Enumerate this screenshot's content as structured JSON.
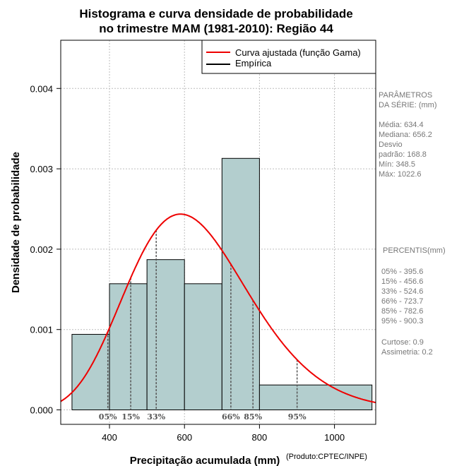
{
  "chart_data": {
    "type": "histogram",
    "title_line1": "Histograma e curva densidade de probabilidade",
    "title_line2": "no trimestre MAM (1981-2010): Região 44",
    "xlabel": "Precipitação acumulada (mm)",
    "ylabel": "Densidade de probabilidade",
    "credit": "(Produto:CPTEC/INPE)",
    "xlim": [
      270,
      1110
    ],
    "ylim": [
      -0.00018,
      0.0046
    ],
    "x_ticks": [
      400,
      600,
      800,
      1000
    ],
    "y_ticks": [
      0.0,
      0.001,
      0.002,
      0.003,
      0.004
    ],
    "y_tick_labels": [
      "0.000",
      "0.001",
      "0.002",
      "0.003",
      "0.004"
    ],
    "bins": [
      {
        "start": 300,
        "end": 400,
        "density": 0.00094
      },
      {
        "start": 400,
        "end": 500,
        "density": 0.00157
      },
      {
        "start": 500,
        "end": 600,
        "density": 0.00187
      },
      {
        "start": 600,
        "end": 700,
        "density": 0.00157
      },
      {
        "start": 700,
        "end": 800,
        "density": 0.00313
      },
      {
        "start": 800,
        "end": 1100,
        "density": 0.00031
      }
    ],
    "gamma_fit": {
      "mean": 634.4,
      "sd": 168.8
    },
    "percentile_markers": [
      {
        "label": "05%",
        "value": 395.6
      },
      {
        "label": "15%",
        "value": 456.6
      },
      {
        "label": "33%",
        "value": 524.6
      },
      {
        "label": "66%",
        "value": 723.7
      },
      {
        "label": "85%",
        "value": 782.6
      },
      {
        "label": "95%",
        "value": 900.3
      }
    ],
    "legend": [
      {
        "label": "Curva ajustada (função Gama)",
        "color": "#ee0000"
      },
      {
        "label": "Empírica",
        "color": "#000000"
      }
    ],
    "colors": {
      "bar_fill": "#b3cece",
      "curve": "#ee0000",
      "grid": "#bdbdbd",
      "marker": "#555555"
    }
  },
  "side_panel": {
    "params_title_1": "PARÂMETROS",
    "params_title_2": " DA SÉRIE: (mm)",
    "stats": [
      "Média:  634.4",
      "Mediana:  656.2",
      "Desvio",
      "padrão:  168.8",
      "Mín:  348.5",
      "Máx:  1022.6"
    ],
    "percentis_title": " PERCENTIS(mm)",
    "percentis": [
      "05% -   395.6",
      "15% -   456.6",
      "33% -   524.6",
      "66% -   723.7",
      "85% -   782.6",
      "95% -   900.3"
    ],
    "shape": [
      "Curtose:  0.9",
      "Assimetria:  0.2"
    ]
  }
}
